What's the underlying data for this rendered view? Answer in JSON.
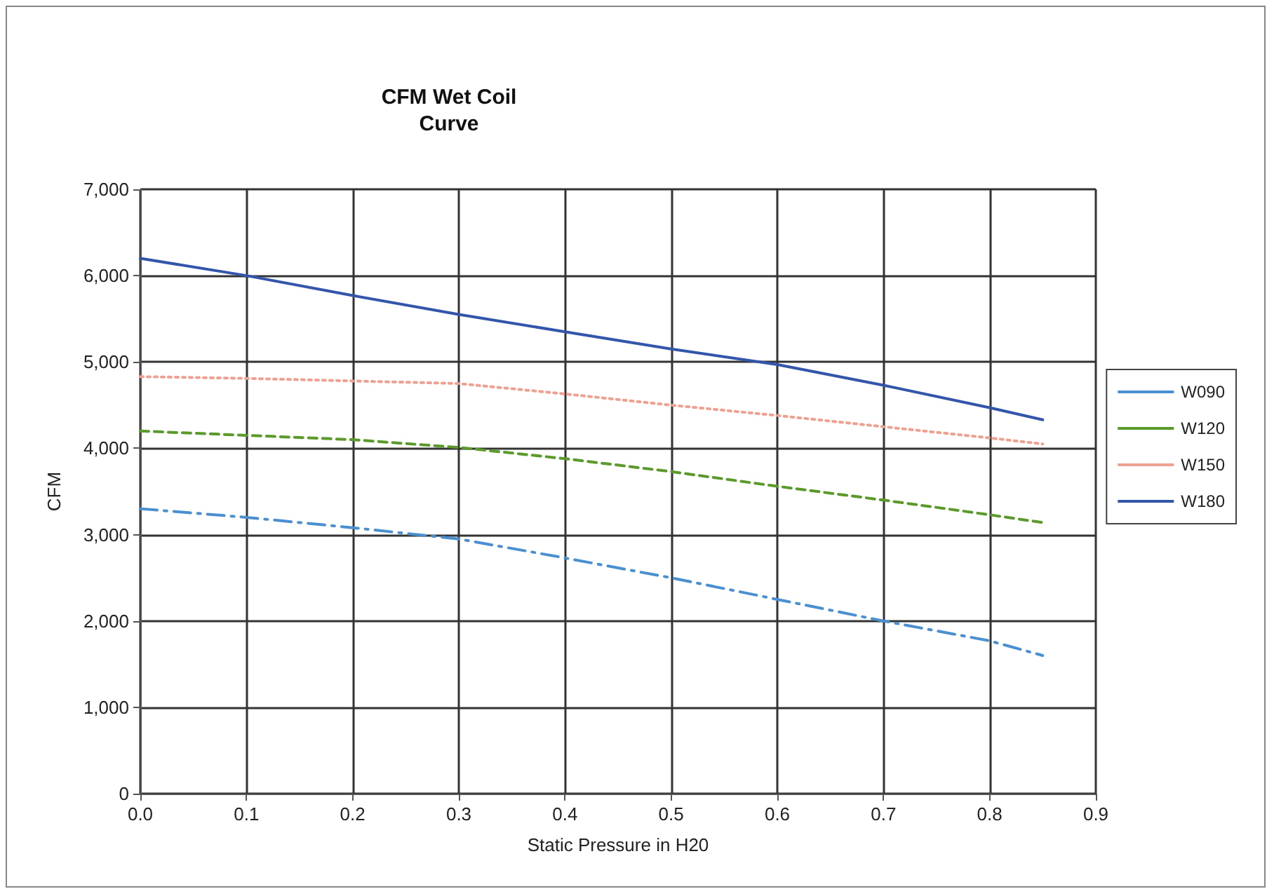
{
  "chart_data": {
    "type": "line",
    "title": "CFM Wet Coil\nCurve",
    "xlabel": "Static Pressure in H20",
    "ylabel": "CFM",
    "x": [
      0,
      0.1,
      0.2,
      0.3,
      0.4,
      0.5,
      0.6,
      0.7,
      0.8,
      0.85
    ],
    "series": [
      {
        "name": "W090",
        "color": "#4a8fd0",
        "line_style": "dashdot",
        "values": [
          3300,
          3200,
          3080,
          2950,
          2730,
          2500,
          2250,
          2000,
          1770,
          1600
        ]
      },
      {
        "name": "W120",
        "color": "#5a9a2a",
        "line_style": "dashed",
        "values": [
          4200,
          4150,
          4100,
          4010,
          3880,
          3730,
          3560,
          3400,
          3230,
          3140
        ]
      },
      {
        "name": "W150",
        "color": "#f0a090",
        "line_style": "dotted",
        "values": [
          4830,
          4810,
          4780,
          4750,
          4630,
          4500,
          4380,
          4250,
          4120,
          4050
        ]
      },
      {
        "name": "W180",
        "color": "#3355aa",
        "line_style": "solid",
        "values": [
          6200,
          6000,
          5770,
          5550,
          5350,
          5150,
          4970,
          4730,
          4470,
          4330
        ]
      }
    ],
    "xlim": [
      0,
      0.9
    ],
    "xticks": [
      {
        "value": 0,
        "label": "0.0"
      },
      0.1,
      0.2,
      0.3,
      0.4,
      0.5,
      0.6,
      0.7,
      0.8,
      0.9
    ],
    "ylim": [
      0,
      7000
    ],
    "yticks": [
      {
        "value": 0,
        "label": "0"
      },
      {
        "value": 1000,
        "label": "1,000"
      },
      {
        "value": 2000,
        "label": "2,000"
      },
      {
        "value": 3000,
        "label": "3,000"
      },
      {
        "value": 4000,
        "label": "4,000"
      },
      {
        "value": 5000,
        "label": "5,000"
      },
      {
        "value": 6000,
        "label": "6,000"
      },
      {
        "value": 7000,
        "label": "7,000"
      }
    ],
    "grid": true,
    "legend": "right",
    "marker": "none"
  }
}
